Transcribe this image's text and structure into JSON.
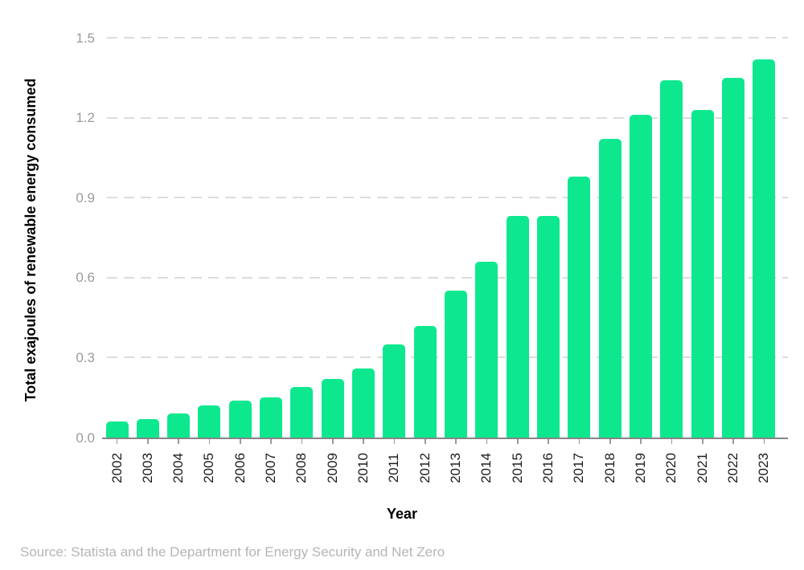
{
  "chart_data": {
    "type": "bar",
    "title": "",
    "xlabel": "Year",
    "ylabel": "Total exajoules of renewable energy consumed",
    "categories": [
      "2002",
      "2003",
      "2004",
      "2005",
      "2006",
      "2007",
      "2008",
      "2009",
      "2010",
      "2011",
      "2012",
      "2013",
      "2014",
      "2015",
      "2016",
      "2017",
      "2018",
      "2019",
      "2020",
      "2021",
      "2022",
      "2023"
    ],
    "values": [
      0.06,
      0.07,
      0.09,
      0.12,
      0.14,
      0.15,
      0.19,
      0.22,
      0.26,
      0.35,
      0.42,
      0.55,
      0.66,
      0.83,
      0.83,
      0.98,
      1.12,
      1.21,
      1.34,
      1.23,
      1.35,
      1.42
    ],
    "ylim": [
      0,
      1.5
    ],
    "yticks": [
      0.0,
      0.3,
      0.6,
      0.9,
      1.2,
      1.5
    ],
    "grid": "horizontal-dashed",
    "legend": "none",
    "source": "Source: Statista and the Department for Energy Security and Net Zero"
  },
  "colors": {
    "bar": "#0de88f",
    "grid": "#dcdcdc",
    "axis": "#858585",
    "tick_mark": "#9a9a9a",
    "y_tick_label": "#9b9b9b",
    "x_tick_label": "#1c1c1c",
    "source_text": "#b5b5b5"
  }
}
